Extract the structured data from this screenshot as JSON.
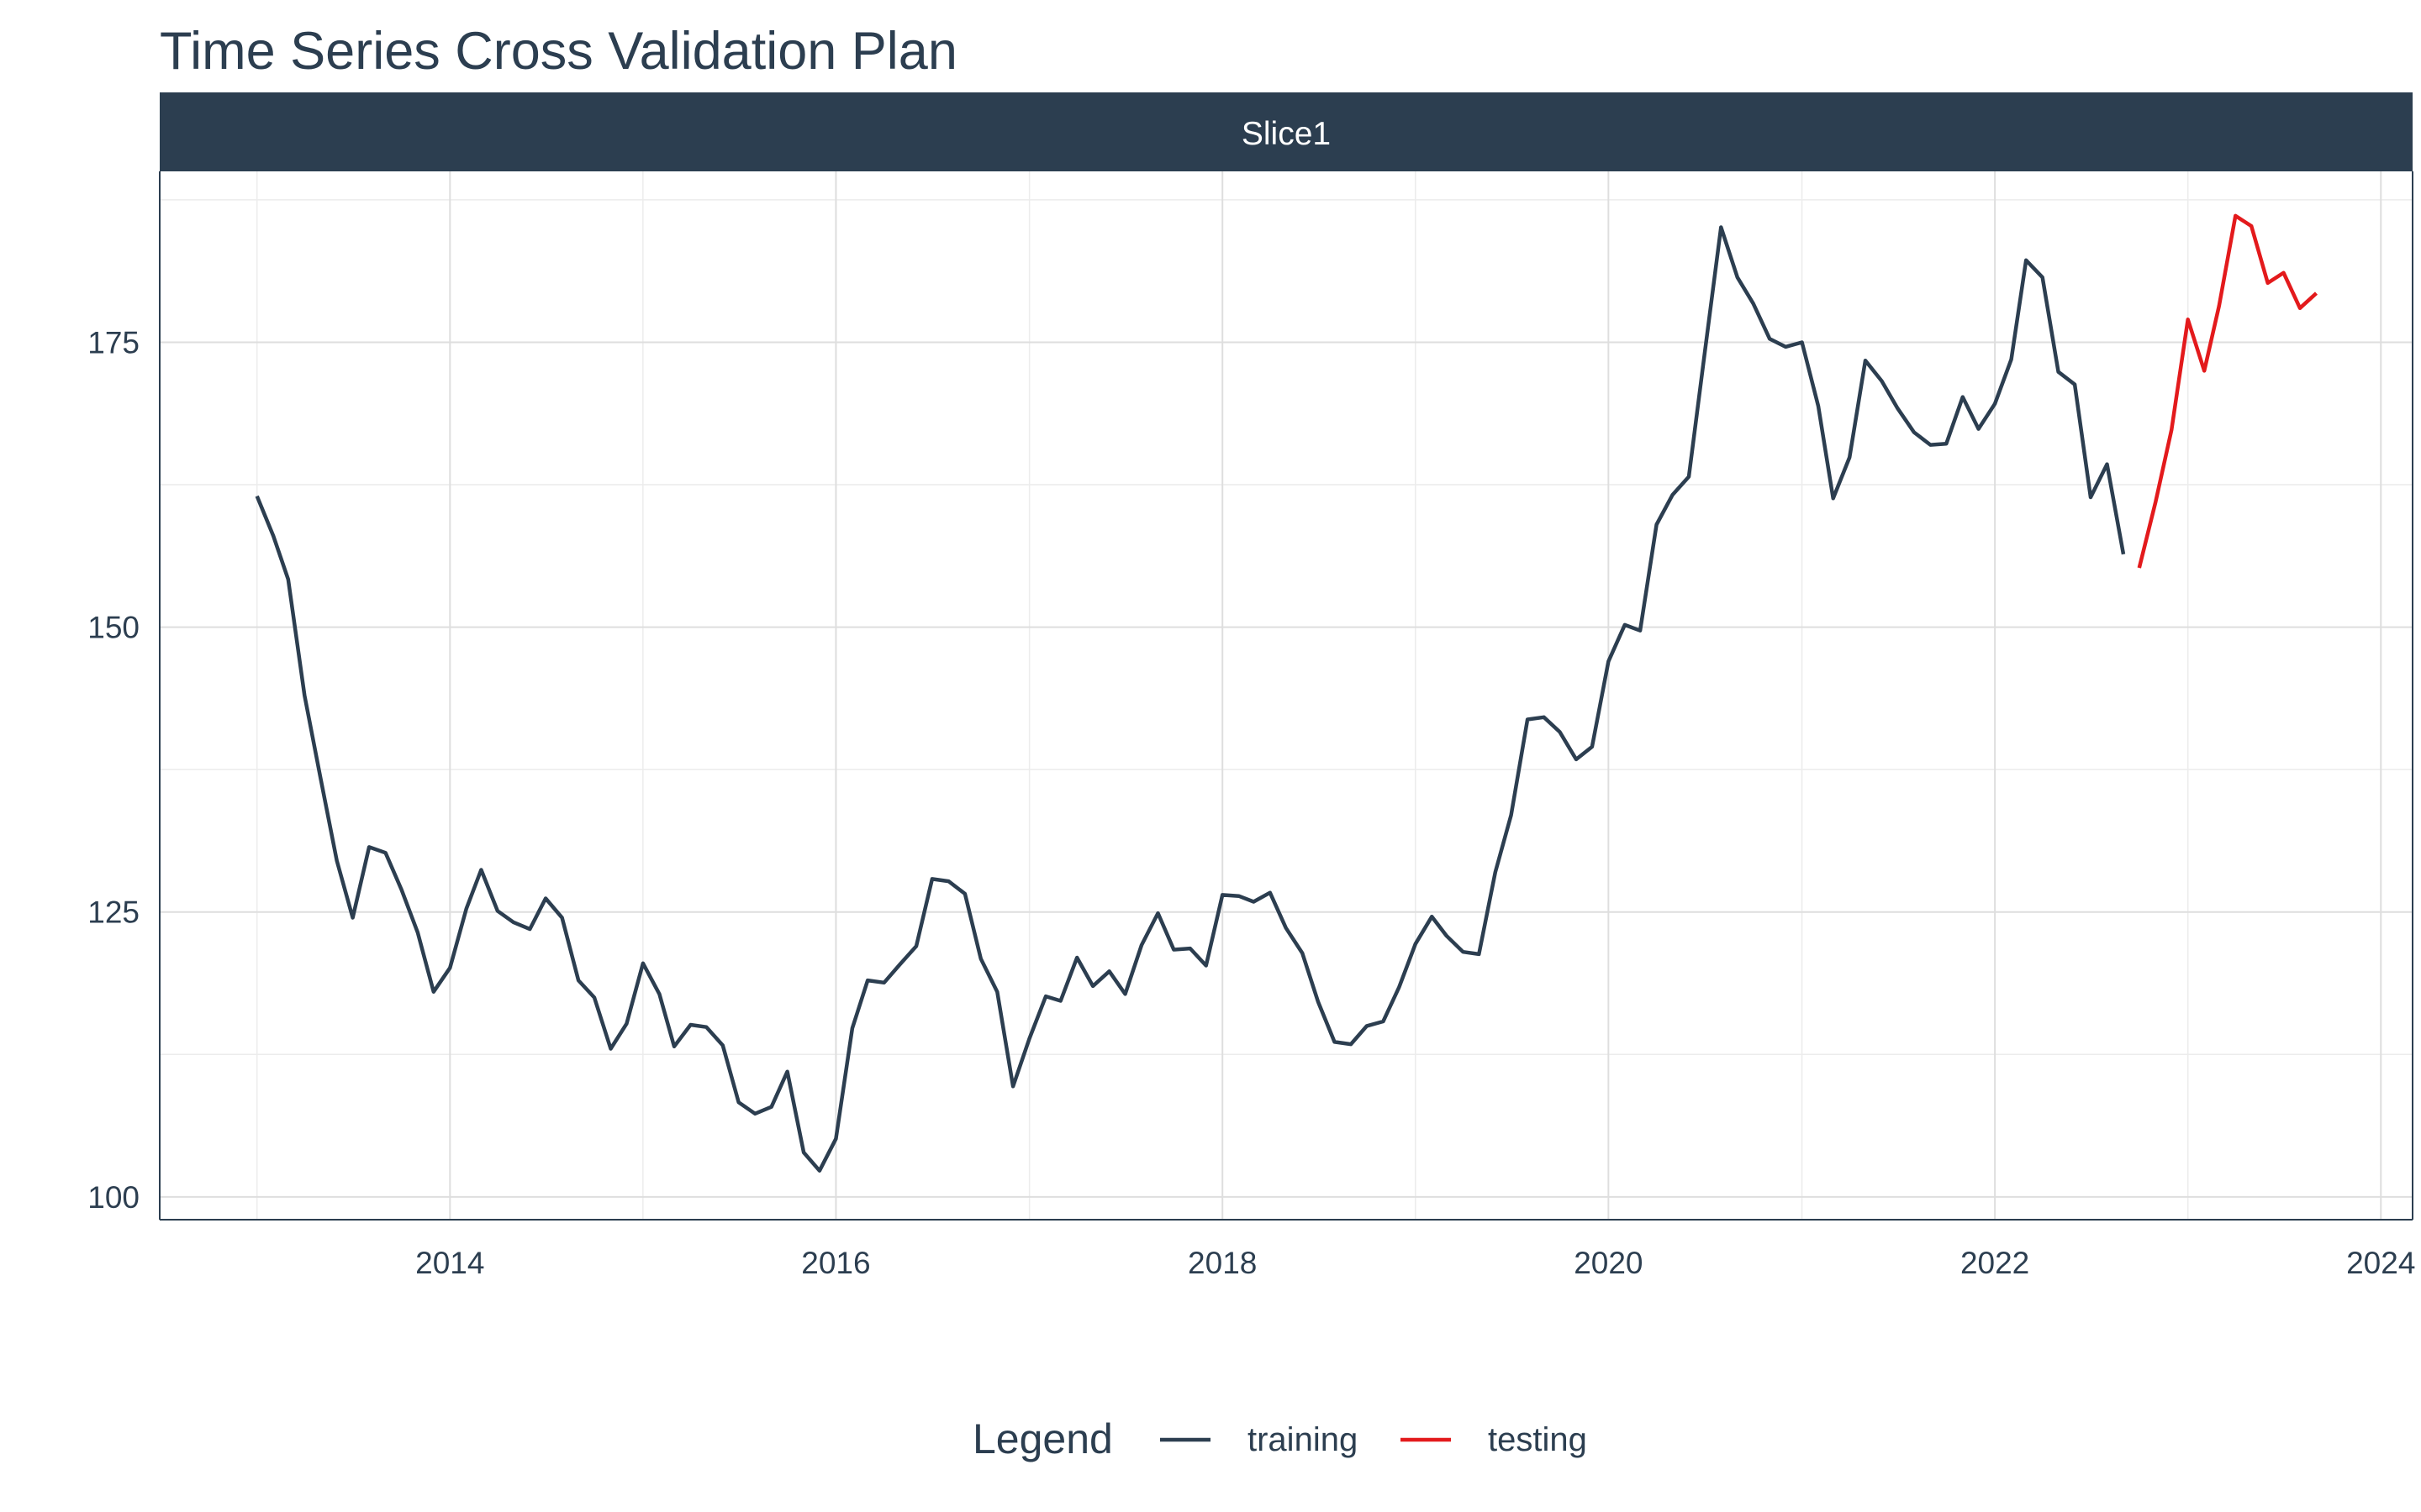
{
  "chart_data": {
    "type": "line",
    "title": "Time Series Cross Validation Plan",
    "facet_label": "Slice1",
    "xlabel": "",
    "ylabel": "",
    "x_ticks": [
      "2014",
      "2016",
      "2018",
      "2020",
      "2022",
      "2024"
    ],
    "y_ticks": [
      "100",
      "125",
      "150",
      "175"
    ],
    "xlim": [
      "2012-07-01",
      "2024-03-01"
    ],
    "ylim": [
      98,
      190
    ],
    "grid": true,
    "legend": {
      "title": "Legend",
      "position": "bottom",
      "entries": [
        {
          "label": "training",
          "color": "#2c3e50"
        },
        {
          "label": "testing",
          "color": "#e31a1c"
        }
      ]
    },
    "series": [
      {
        "name": "training",
        "color": "#2c3e50",
        "x": [
          "2013-01-01",
          "2013-02-01",
          "2013-03-01",
          "2013-04-01",
          "2013-05-01",
          "2013-06-01",
          "2013-07-01",
          "2013-08-01",
          "2013-09-01",
          "2013-10-01",
          "2013-11-01",
          "2013-12-01",
          "2014-01-01",
          "2014-02-01",
          "2014-03-01",
          "2014-04-01",
          "2014-05-01",
          "2014-06-01",
          "2014-07-01",
          "2014-08-01",
          "2014-09-01",
          "2014-10-01",
          "2014-11-01",
          "2014-12-01",
          "2015-01-01",
          "2015-02-01",
          "2015-03-01",
          "2015-04-01",
          "2015-05-01",
          "2015-06-01",
          "2015-07-01",
          "2015-08-01",
          "2015-09-01",
          "2015-10-01",
          "2015-11-01",
          "2015-12-01",
          "2016-01-01",
          "2016-02-01",
          "2016-03-01",
          "2016-04-01",
          "2016-05-01",
          "2016-06-01",
          "2016-07-01",
          "2016-08-01",
          "2016-09-01",
          "2016-10-01",
          "2016-11-01",
          "2016-12-01",
          "2017-01-01",
          "2017-02-01",
          "2017-03-01",
          "2017-04-01",
          "2017-05-01",
          "2017-06-01",
          "2017-07-01",
          "2017-08-01",
          "2017-09-01",
          "2017-10-01",
          "2017-11-01",
          "2017-12-01",
          "2018-01-01",
          "2018-02-01",
          "2018-03-01",
          "2018-04-01",
          "2018-05-01",
          "2018-06-01",
          "2018-07-01",
          "2018-08-01",
          "2018-09-01",
          "2018-10-01",
          "2018-11-01",
          "2018-12-01",
          "2019-01-01",
          "2019-02-01",
          "2019-03-01",
          "2019-04-01",
          "2019-05-01",
          "2019-06-01",
          "2019-07-01",
          "2019-08-01",
          "2019-09-01",
          "2019-10-01",
          "2019-11-01",
          "2019-12-01",
          "2020-01-01",
          "2020-02-01",
          "2020-03-01",
          "2020-04-01",
          "2020-05-01",
          "2020-06-01",
          "2020-07-01",
          "2020-08-01",
          "2020-09-01",
          "2020-10-01",
          "2020-11-01",
          "2020-12-01",
          "2021-01-01",
          "2021-02-01",
          "2021-03-01",
          "2021-04-01",
          "2021-05-01",
          "2021-06-01",
          "2021-07-01",
          "2021-08-01",
          "2021-09-01",
          "2021-10-01",
          "2021-11-01",
          "2021-12-01",
          "2022-01-01",
          "2022-02-01",
          "2022-03-01",
          "2022-04-01",
          "2022-05-01",
          "2022-06-01",
          "2022-07-01",
          "2022-08-01",
          "2022-09-01"
        ],
        "values": [
          161.5,
          158.0,
          154.2,
          144.0,
          136.8,
          129.5,
          124.5,
          130.7,
          130.2,
          127.0,
          123.2,
          118.0,
          120.1,
          125.3,
          128.7,
          125.1,
          124.1,
          123.5,
          126.2,
          124.5,
          119.0,
          117.5,
          113.0,
          115.2,
          120.5,
          117.8,
          113.2,
          115.1,
          114.9,
          113.3,
          108.3,
          107.3,
          107.9,
          111.0,
          103.9,
          102.3,
          105.1,
          114.8,
          119.0,
          118.8,
          120.4,
          122.0,
          127.9,
          127.7,
          126.6,
          120.9,
          118.0,
          109.7,
          113.9,
          117.6,
          117.2,
          121.0,
          118.5,
          119.8,
          117.8,
          122.1,
          124.9,
          121.7,
          121.8,
          120.3,
          126.5,
          126.4,
          125.9,
          126.7,
          123.6,
          121.4,
          117.1,
          113.6,
          113.4,
          115.0,
          115.4,
          118.4,
          122.2,
          124.6,
          122.9,
          121.5,
          121.3,
          128.5,
          133.5,
          141.9,
          142.1,
          140.8,
          138.4,
          139.5,
          147.0,
          150.2,
          149.7,
          159.0,
          161.6,
          163.2,
          174.0,
          185.1,
          180.7,
          178.4,
          175.3,
          174.6,
          175.0,
          169.4,
          161.3,
          164.9,
          173.4,
          171.6,
          169.2,
          167.1,
          166.0,
          166.1,
          170.2,
          167.4,
          169.6,
          173.5,
          182.2,
          180.7,
          172.4,
          171.3,
          161.4,
          164.3,
          156.4
        ]
      },
      {
        "name": "testing",
        "color": "#e31a1c",
        "x": [
          "2022-10-01",
          "2022-11-01",
          "2022-12-01",
          "2023-01-01",
          "2023-02-01",
          "2023-03-01",
          "2023-04-01",
          "2023-05-01",
          "2023-06-01",
          "2023-07-01",
          "2023-08-01",
          "2023-09-01"
        ],
        "values": [
          155.2,
          161.0,
          167.3,
          177.0,
          172.5,
          178.2,
          186.1,
          185.2,
          180.2,
          181.1,
          178.0,
          179.3
        ]
      }
    ]
  }
}
